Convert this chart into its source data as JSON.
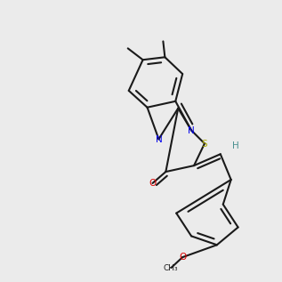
{
  "bg_color": "#ebebeb",
  "bond_color": "#1a1a1a",
  "N_color": "#0000ee",
  "S_color": "#aaaa00",
  "O_color": "#dd0000",
  "H_color": "#4a9090",
  "lw": 1.5
}
